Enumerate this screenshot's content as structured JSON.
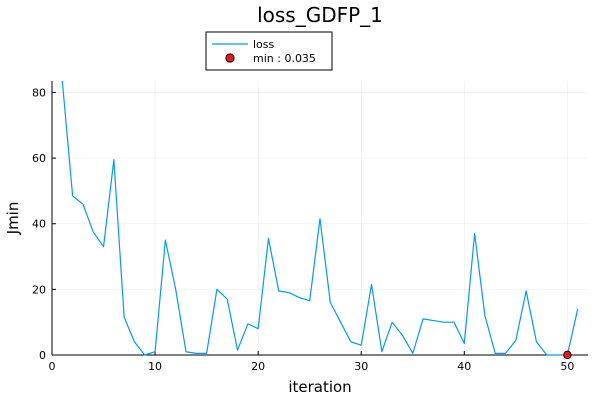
{
  "chart_data": {
    "type": "line",
    "title": "loss_GDFP_1",
    "xlabel": "iteration",
    "ylabel": "Jmin",
    "xlim": [
      0,
      52
    ],
    "ylim": [
      0,
      83.5
    ],
    "xticks": [
      0,
      10,
      20,
      30,
      40,
      50
    ],
    "yticks": [
      0,
      20,
      40,
      60,
      80
    ],
    "grid": true,
    "legend_position": "top-center",
    "series": [
      {
        "name": "loss",
        "type": "line",
        "color": "#009AF9",
        "x": [
          1,
          2,
          3,
          4,
          5,
          6,
          7,
          8,
          9,
          10,
          11,
          12,
          13,
          14,
          15,
          16,
          17,
          18,
          19,
          20,
          21,
          22,
          23,
          24,
          25,
          26,
          27,
          28,
          29,
          30,
          31,
          32,
          33,
          34,
          35,
          36,
          37,
          38,
          39,
          40,
          41,
          42,
          43,
          44,
          45,
          46,
          47,
          48,
          49,
          50,
          51
        ],
        "y": [
          83.5,
          48.5,
          46,
          37.5,
          33,
          59.5,
          11.5,
          4,
          0,
          1,
          35,
          20,
          1,
          0.5,
          0.5,
          20,
          17,
          1.5,
          9.5,
          8,
          35.5,
          19.5,
          19,
          17.5,
          16.5,
          41.5,
          16,
          10,
          4,
          3,
          21.5,
          1,
          10,
          6,
          0.5,
          11,
          10.5,
          10,
          10,
          3.5,
          37,
          12,
          0.5,
          0.5,
          4.5,
          19.5,
          4,
          0,
          0,
          0,
          14
        ]
      },
      {
        "name": "min : 0.035",
        "type": "scatter",
        "color": "#E61919",
        "x": [
          50
        ],
        "y": [
          0.035
        ]
      }
    ]
  }
}
